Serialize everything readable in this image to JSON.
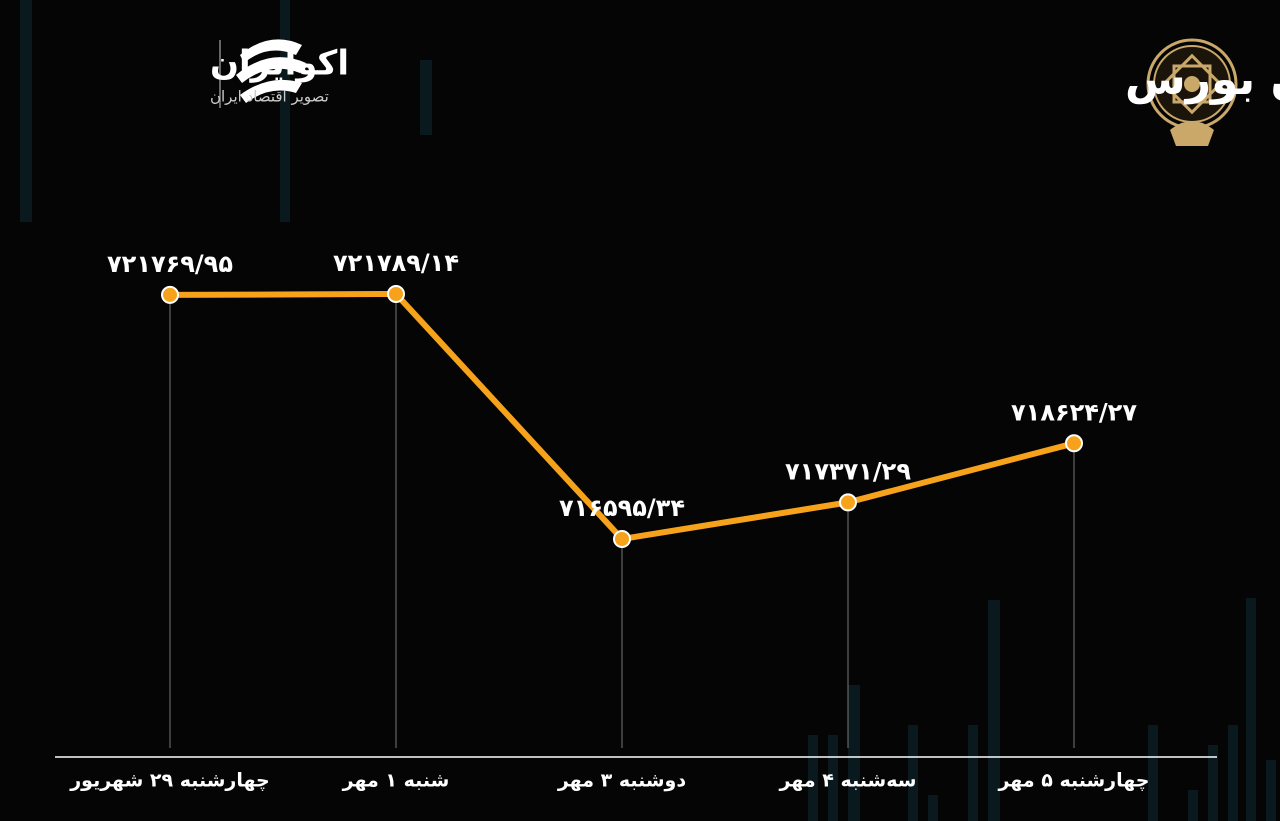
{
  "chart_data": {
    "type": "line",
    "title": "روند هفته شاخص هم وزن بورس",
    "categories": [
      "چهارشنبه ۲۹ شهریور",
      "شنبه ۱ مهر",
      "دوشنبه ۳ مهر",
      "سه‌شنبه ۴ مهر",
      "چهارشنبه ۵ مهر"
    ],
    "values": [
      721769.95,
      721789.14,
      716595.34,
      717371.29,
      718624.27
    ],
    "value_labels": [
      "۷۲۱۷۶۹/۹۵",
      "۷۲۱۷۸۹/۱۴",
      "۷۱۶۵۹۵/۳۴",
      "۷۱۷۳۷۱/۲۹",
      "۷۱۸۶۲۴/۲۷"
    ],
    "color": "#f7a21b"
  },
  "logo": {
    "name": "اکوایران",
    "tagline": "تصویر اقتصاد ایران"
  }
}
